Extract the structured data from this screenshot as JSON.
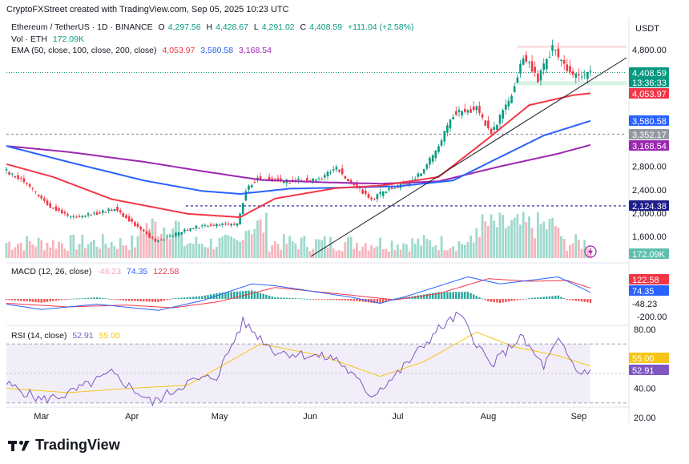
{
  "header": {
    "credit": "CryptoFXStreet created with TradingView.com, Sep 05, 2025 10:23 UTC"
  },
  "legend": {
    "symbol": "Ethereum / TetherUS · 1D · BINANCE",
    "open_label": "O",
    "open": "4,297.56",
    "high_label": "H",
    "high": "4,428.67",
    "low_label": "L",
    "low": "4,291.02",
    "close_label": "C",
    "close": "4,408.59",
    "change": "+111.04 (+2.58%)",
    "vol_label": "Vol · ETH",
    "vol_value": "172.09K",
    "ema_label": "EMA (50, close, 100, close, 200, close)",
    "ema50": "4,053.97",
    "ema100": "3,580.58",
    "ema200": "3,168.54"
  },
  "macd_legend": {
    "label": "MACD (12, 26, close)",
    "hist": "-48.23",
    "macd": "74.35",
    "signal": "122.58"
  },
  "rsi_legend": {
    "label": "RSI (14, close)",
    "rsi": "52.91",
    "ma": "55.00"
  },
  "brand": {
    "name": "TradingView"
  },
  "colors": {
    "up": "#089981",
    "down": "#f23645",
    "ema50": "#f23645",
    "ema100": "#2962ff",
    "ema200": "#9c27b0",
    "macd": "#2962ff",
    "signal": "#f23645",
    "rsi": "#7e57c2",
    "rsi_ma": "#f5c518"
  },
  "chart_data": [
    {
      "type": "candlestick",
      "title": "Ethereum / TetherUS · 1D · BINANCE",
      "x_ticks": [
        "Mar",
        "Apr",
        "May",
        "Jun",
        "Jul",
        "Aug",
        "Sep"
      ],
      "x_tick_dates": [
        "2025-03-01",
        "2025-04-01",
        "2025-05-01",
        "2025-06-01",
        "2025-07-01",
        "2025-08-01",
        "2025-09-01"
      ],
      "y_unit": "USDT",
      "y_ticks": [
        1600,
        2000,
        2400,
        2800,
        4800
      ],
      "y_tick_labels": [
        "1,600.00",
        "2,000.00",
        "2,400.00",
        "2,800.00",
        "4,800.00"
      ],
      "price_labels": [
        {
          "name": "close",
          "value": "4,408.59",
          "color": "#089981"
        },
        {
          "name": "countdown",
          "value": "13:36:33",
          "color": "#089981"
        },
        {
          "name": "ema50",
          "value": "4,053.97",
          "color": "#f23645"
        },
        {
          "name": "ema100",
          "value": "3,580.58",
          "color": "#2962ff"
        },
        {
          "name": "level",
          "value": "3,352.17",
          "color": "#9598a1"
        },
        {
          "name": "ema200",
          "value": "3,168.54",
          "color": "#9c27b0"
        },
        {
          "name": "level",
          "value": "2,124.38",
          "color": "#1e1e8c"
        }
      ],
      "volume_label": "172.09K",
      "horizontal_levels": [
        4850,
        4250,
        3352.17,
        2124.38
      ],
      "ema50_anchors": [
        [
          "2025-02-17",
          2840
        ],
        [
          "2025-03-05",
          2620
        ],
        [
          "2025-03-25",
          2240
        ],
        [
          "2025-04-20",
          1990
        ],
        [
          "2025-05-08",
          1930
        ],
        [
          "2025-05-20",
          2250
        ],
        [
          "2025-06-10",
          2430
        ],
        [
          "2025-06-25",
          2470
        ],
        [
          "2025-07-15",
          2620
        ],
        [
          "2025-08-01",
          3280
        ],
        [
          "2025-08-15",
          3850
        ],
        [
          "2025-08-30",
          4020
        ],
        [
          "2025-09-05",
          4054
        ]
      ],
      "ema100_anchors": [
        [
          "2025-02-17",
          3150
        ],
        [
          "2025-03-10",
          2880
        ],
        [
          "2025-04-05",
          2560
        ],
        [
          "2025-04-25",
          2380
        ],
        [
          "2025-05-08",
          2330
        ],
        [
          "2025-05-25",
          2420
        ],
        [
          "2025-06-15",
          2440
        ],
        [
          "2025-07-01",
          2460
        ],
        [
          "2025-07-20",
          2560
        ],
        [
          "2025-08-05",
          2960
        ],
        [
          "2025-08-20",
          3330
        ],
        [
          "2025-09-05",
          3581
        ]
      ],
      "ema200_anchors": [
        [
          "2025-02-17",
          3150
        ],
        [
          "2025-03-10",
          3050
        ],
        [
          "2025-04-05",
          2880
        ],
        [
          "2025-04-25",
          2720
        ],
        [
          "2025-05-15",
          2570
        ],
        [
          "2025-06-05",
          2530
        ],
        [
          "2025-06-25",
          2505
        ],
        [
          "2025-07-15",
          2545
        ],
        [
          "2025-08-05",
          2800
        ],
        [
          "2025-08-25",
          3020
        ],
        [
          "2025-09-05",
          3169
        ]
      ],
      "close_anchors": [
        [
          "2025-02-17",
          2720
        ],
        [
          "2025-02-24",
          2500
        ],
        [
          "2025-03-03",
          2150
        ],
        [
          "2025-03-11",
          1920
        ],
        [
          "2025-03-20",
          2000
        ],
        [
          "2025-03-26",
          2080
        ],
        [
          "2025-04-02",
          1800
        ],
        [
          "2025-04-09",
          1520
        ],
        [
          "2025-04-15",
          1620
        ],
        [
          "2025-04-22",
          1760
        ],
        [
          "2025-04-30",
          1800
        ],
        [
          "2025-05-07",
          1810
        ],
        [
          "2025-05-10",
          2400
        ],
        [
          "2025-05-14",
          2600
        ],
        [
          "2025-05-25",
          2540
        ],
        [
          "2025-06-05",
          2600
        ],
        [
          "2025-06-10",
          2780
        ],
        [
          "2025-06-15",
          2520
        ],
        [
          "2025-06-22",
          2230
        ],
        [
          "2025-06-28",
          2420
        ],
        [
          "2025-07-05",
          2530
        ],
        [
          "2025-07-10",
          2770
        ],
        [
          "2025-07-14",
          3050
        ],
        [
          "2025-07-20",
          3700
        ],
        [
          "2025-07-28",
          3800
        ],
        [
          "2025-08-02",
          3380
        ],
        [
          "2025-08-08",
          3900
        ],
        [
          "2025-08-13",
          4700
        ],
        [
          "2025-08-18",
          4300
        ],
        [
          "2025-08-23",
          4850
        ],
        [
          "2025-08-27",
          4500
        ],
        [
          "2025-09-01",
          4300
        ],
        [
          "2025-09-05",
          4409
        ]
      ]
    },
    {
      "type": "histogram",
      "title": "MACD (12, 26, close)",
      "series_names": [
        "MACD",
        "Signal",
        "Histogram"
      ],
      "latest": {
        "histogram": -48.23,
        "macd": 74.35,
        "signal": 122.58
      },
      "y_ticks": [
        -200
      ],
      "y_tick_labels": [
        "-200.00"
      ],
      "macd_anchors": [
        [
          "2025-02-17",
          -60
        ],
        [
          "2025-03-01",
          -120
        ],
        [
          "2025-03-20",
          -60
        ],
        [
          "2025-04-10",
          -130
        ],
        [
          "2025-04-25",
          -20
        ],
        [
          "2025-05-12",
          170
        ],
        [
          "2025-05-20",
          150
        ],
        [
          "2025-06-15",
          20
        ],
        [
          "2025-06-25",
          -50
        ],
        [
          "2025-07-05",
          40
        ],
        [
          "2025-07-25",
          250
        ],
        [
          "2025-08-05",
          170
        ],
        [
          "2025-08-25",
          250
        ],
        [
          "2025-09-05",
          74
        ]
      ],
      "signal_anchors": [
        [
          "2025-02-17",
          -50
        ],
        [
          "2025-03-10",
          -90
        ],
        [
          "2025-03-30",
          -70
        ],
        [
          "2025-04-15",
          -100
        ],
        [
          "2025-05-01",
          -30
        ],
        [
          "2025-05-20",
          130
        ],
        [
          "2025-06-10",
          60
        ],
        [
          "2025-06-30",
          -10
        ],
        [
          "2025-07-15",
          60
        ],
        [
          "2025-08-01",
          230
        ],
        [
          "2025-08-15",
          200
        ],
        [
          "2025-08-28",
          210
        ],
        [
          "2025-09-05",
          123
        ]
      ]
    },
    {
      "type": "line",
      "title": "RSI (14, close)",
      "series_names": [
        "RSI",
        "RSI-based MA"
      ],
      "latest": {
        "rsi": 52.91,
        "ma": 55.0
      },
      "y_ticks": [
        20,
        40,
        80
      ],
      "y_tick_labels": [
        "20.00",
        "40.00",
        "80.00"
      ],
      "bands": [
        70,
        30
      ],
      "rsi_anchors": [
        [
          "2025-02-17",
          43
        ],
        [
          "2025-03-01",
          32
        ],
        [
          "2025-03-10",
          36
        ],
        [
          "2025-03-25",
          50
        ],
        [
          "2025-04-08",
          30
        ],
        [
          "2025-04-20",
          44
        ],
        [
          "2025-04-30",
          48
        ],
        [
          "2025-05-09",
          85
        ],
        [
          "2025-05-20",
          65
        ],
        [
          "2025-06-10",
          60
        ],
        [
          "2025-06-22",
          35
        ],
        [
          "2025-07-01",
          50
        ],
        [
          "2025-07-15",
          80
        ],
        [
          "2025-07-22",
          90
        ],
        [
          "2025-08-02",
          55
        ],
        [
          "2025-08-12",
          75
        ],
        [
          "2025-08-20",
          55
        ],
        [
          "2025-08-25",
          72
        ],
        [
          "2025-09-01",
          50
        ],
        [
          "2025-09-05",
          53
        ]
      ],
      "ma_anchors": [
        [
          "2025-02-17",
          40
        ],
        [
          "2025-03-10",
          37
        ],
        [
          "2025-04-01",
          40
        ],
        [
          "2025-04-20",
          42
        ],
        [
          "2025-05-15",
          70
        ],
        [
          "2025-06-05",
          62
        ],
        [
          "2025-06-25",
          48
        ],
        [
          "2025-07-10",
          58
        ],
        [
          "2025-07-28",
          78
        ],
        [
          "2025-08-10",
          68
        ],
        [
          "2025-08-25",
          62
        ],
        [
          "2025-09-05",
          55
        ]
      ]
    }
  ]
}
